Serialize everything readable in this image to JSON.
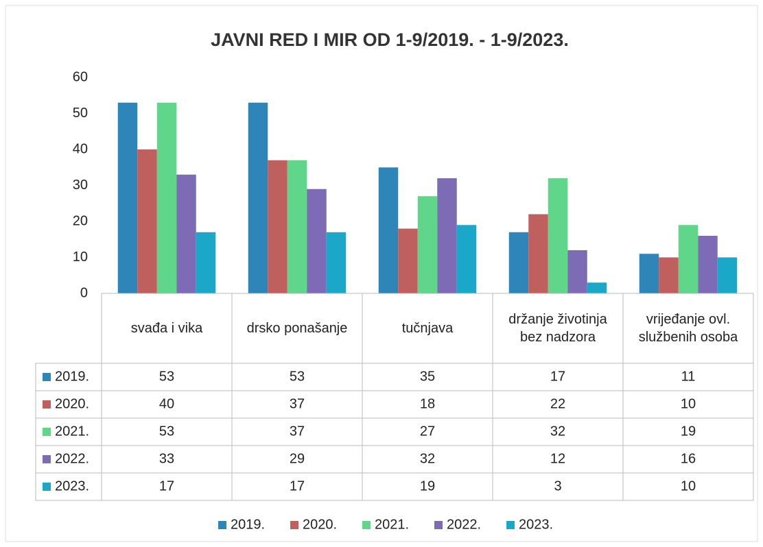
{
  "chart_data": {
    "type": "bar",
    "title": "JAVNI RED I MIR OD 1-9/2019. - 1-9/2023.",
    "categories": [
      "svađa i vika",
      "drsko ponašanje",
      "tučnjava",
      "držanje životinja bez nadzora",
      "vrijeđanje ovl. službenih osoba"
    ],
    "series": [
      {
        "name": "2019.",
        "color": "#2e86b8",
        "values": [
          53,
          53,
          35,
          17,
          11
        ]
      },
      {
        "name": "2020.",
        "color": "#c0605e",
        "values": [
          40,
          37,
          18,
          22,
          10
        ]
      },
      {
        "name": "2021.",
        "color": "#5fd68a",
        "values": [
          53,
          37,
          27,
          32,
          19
        ]
      },
      {
        "name": "2022.",
        "color": "#7d6bb5",
        "values": [
          33,
          29,
          32,
          12,
          16
        ]
      },
      {
        "name": "2023.",
        "color": "#1ba8c8",
        "values": [
          17,
          17,
          19,
          3,
          10
        ]
      }
    ],
    "ylim": [
      0,
      60
    ],
    "yticks": [
      0,
      10,
      20,
      30,
      40,
      50,
      60
    ],
    "grid": false,
    "legend": "bottom",
    "data_table": true
  }
}
